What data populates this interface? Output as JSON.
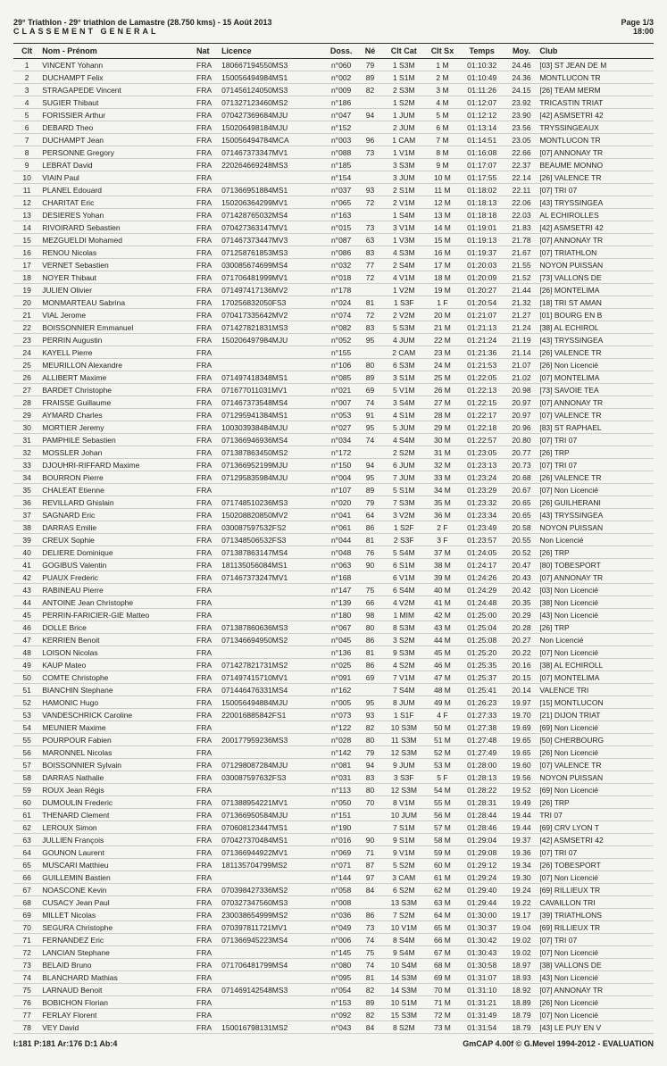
{
  "header": {
    "title": "29° Triathlon - 29° triathlon de Lamastre (28.750 kms) - 15 Août 2013",
    "subtitle": "CLASSEMENT GENERAL",
    "page": "Page 1/3",
    "time": "18:00"
  },
  "columns": [
    "Clt",
    "Nom - Prénom",
    "Nat",
    "Licence",
    "Doss.",
    "Né",
    "Clt Cat",
    "Clt Sx",
    "Temps",
    "Moy.",
    "Club"
  ],
  "rows": [
    [
      "1",
      "VINCENT Yohann",
      "FRA",
      "180667194550MS3",
      "n°060",
      "79",
      "1 S3M",
      "1 M",
      "01:10:32",
      "24.46",
      "[03] ST JEAN DE M"
    ],
    [
      "2",
      "DUCHAMPT Felix",
      "FRA",
      "150056494984MS1",
      "n°002",
      "89",
      "1 S1M",
      "2 M",
      "01:10:49",
      "24.36",
      "MONTLUCON TR"
    ],
    [
      "3",
      "STRAGAPEDE Vincent",
      "FRA",
      "071456124050MS3",
      "n°009",
      "82",
      "2 S3M",
      "3 M",
      "01:11:26",
      "24.15",
      "[26] TEAM MERM"
    ],
    [
      "4",
      "SUGIER Thibaut",
      "FRA",
      "071327123460MS2",
      "n°186",
      "",
      "1 S2M",
      "4 M",
      "01:12:07",
      "23.92",
      "TRICASTIN TRIAT"
    ],
    [
      "5",
      "FORISSIER Arthur",
      "FRA",
      "070427369684MJU",
      "n°047",
      "94",
      "1 JUM",
      "5 M",
      "01:12:12",
      "23.90",
      "[42] ASMSETRI 42"
    ],
    [
      "6",
      "DEBARD Theo",
      "FRA",
      "150206498184MJU",
      "n°152",
      "",
      "2 JUM",
      "6 M",
      "01:13:14",
      "23.56",
      "TRYSSINGEAUX"
    ],
    [
      "7",
      "DUCHAMPT Jean",
      "FRA",
      "150056494784MCA",
      "n°003",
      "96",
      "1 CAM",
      "7 M",
      "01:14:51",
      "23.05",
      "MONTLUCON TR"
    ],
    [
      "8",
      "PERSONNE Gregory",
      "FRA",
      "071467373347MV1",
      "n°088",
      "73",
      "1 V1M",
      "8 M",
      "01:16:08",
      "22.66",
      "[07] ANNONAY TR"
    ],
    [
      "9",
      "LEBRAT David",
      "FRA",
      "220264669248MS3",
      "n°185",
      "",
      "3 S3M",
      "9 M",
      "01:17:07",
      "22.37",
      "BEAUME MONNO"
    ],
    [
      "10",
      "VIAIN Paul",
      "FRA",
      "",
      "n°154",
      "",
      "3 JUM",
      "10 M",
      "01:17:55",
      "22.14",
      "[26] VALENCE TR"
    ],
    [
      "11",
      "PLANEL Edouard",
      "FRA",
      "071366951884MS1",
      "n°037",
      "93",
      "2 S1M",
      "11 M",
      "01:18:02",
      "22.11",
      "[07] TRI 07"
    ],
    [
      "12",
      "CHARITAT Eric",
      "FRA",
      "150206364299MV1",
      "n°065",
      "72",
      "2 V1M",
      "12 M",
      "01:18:13",
      "22.06",
      "[43] TRYSSINGEA"
    ],
    [
      "13",
      "DESIERES Yohan",
      "FRA",
      "071428765032MS4",
      "n°163",
      "",
      "1 S4M",
      "13 M",
      "01:18:18",
      "22.03",
      "AL ECHIROLLES"
    ],
    [
      "14",
      "RIVOIRARD Sebastien",
      "FRA",
      "070427363147MV1",
      "n°015",
      "73",
      "3 V1M",
      "14 M",
      "01:19:01",
      "21.83",
      "[42] ASMSETRI 42"
    ],
    [
      "15",
      "MEZGUELDI Mohamed",
      "FRA",
      "071467373447MV3",
      "n°087",
      "63",
      "1 V3M",
      "15 M",
      "01:19:13",
      "21.78",
      "[07] ANNONAY TR"
    ],
    [
      "16",
      "RENOU Nicolas",
      "FRA",
      "071258761853MS3",
      "n°086",
      "83",
      "4 S3M",
      "16 M",
      "01:19:37",
      "21.67",
      "[07] TRIATHLON"
    ],
    [
      "17",
      "VERNET Sebastien",
      "FRA",
      "030085674699MS4",
      "n°032",
      "77",
      "2 S4M",
      "17 M",
      "01:20:03",
      "21.55",
      "NOYON PUISSAN"
    ],
    [
      "18",
      "NOYER Thibaut",
      "FRA",
      "071706481999MV1",
      "n°018",
      "72",
      "4 V1M",
      "18 M",
      "01:20:09",
      "21.52",
      "[73] VALLONS DE"
    ],
    [
      "19",
      "JULIEN Olivier",
      "FRA",
      "071497417136MV2",
      "n°178",
      "",
      "1 V2M",
      "19 M",
      "01:20:27",
      "21.44",
      "[26] MONTELIMA"
    ],
    [
      "20",
      "MONMARTEAU Sabrina",
      "FRA",
      "170256832050FS3",
      "n°024",
      "81",
      "1 S3F",
      "1 F",
      "01:20:54",
      "21.32",
      "[18] TRI ST AMAN"
    ],
    [
      "21",
      "VIAL Jerome",
      "FRA",
      "070417335642MV2",
      "n°074",
      "72",
      "2 V2M",
      "20 M",
      "01:21:07",
      "21.27",
      "[01] BOURG EN B"
    ],
    [
      "22",
      "BOISSONNIER Emmanuel",
      "FRA",
      "071427821831MS3",
      "n°082",
      "83",
      "5 S3M",
      "21 M",
      "01:21:13",
      "21.24",
      "[38] AL ECHIROL"
    ],
    [
      "23",
      "PERRIN Augustin",
      "FRA",
      "150206497984MJU",
      "n°052",
      "95",
      "4 JUM",
      "22 M",
      "01:21:24",
      "21.19",
      "[43] TRYSSINGEA"
    ],
    [
      "24",
      "KAYELL Pierre",
      "FRA",
      "",
      "n°155",
      "",
      "2 CAM",
      "23 M",
      "01:21:36",
      "21.14",
      "[26] VALENCE TR"
    ],
    [
      "25",
      "MEURILLON Alexandre",
      "FRA",
      "",
      "n°106",
      "80",
      "6 S3M",
      "24 M",
      "01:21:53",
      "21.07",
      "[26] Non Licencié"
    ],
    [
      "26",
      "ALLIBERT Maxime",
      "FRA",
      "071497418348MS1",
      "n°085",
      "89",
      "3 S1M",
      "25 M",
      "01:22:05",
      "21.02",
      "[07] MONTELIMA"
    ],
    [
      "27",
      "BARDET Christophe",
      "FRA",
      "071677011031MV1",
      "n°021",
      "69",
      "5 V1M",
      "26 M",
      "01:22:13",
      "20.98",
      "[73] SAVOIE TEA"
    ],
    [
      "28",
      "FRAISSE Guillaume",
      "FRA",
      "071467373548MS4",
      "n°007",
      "74",
      "3 S4M",
      "27 M",
      "01:22:15",
      "20.97",
      "[07] ANNONAY TR"
    ],
    [
      "29",
      "AYMARD Charles",
      "FRA",
      "071295941384MS1",
      "n°053",
      "91",
      "4 S1M",
      "28 M",
      "01:22:17",
      "20.97",
      "[07] VALENCE TR"
    ],
    [
      "30",
      "MORTIER Jeremy",
      "FRA",
      "100303938484MJU",
      "n°027",
      "95",
      "5 JUM",
      "29 M",
      "01:22:18",
      "20.96",
      "[83] ST RAPHAEL"
    ],
    [
      "31",
      "PAMPHILE Sebastien",
      "FRA",
      "071366946936MS4",
      "n°034",
      "74",
      "4 S4M",
      "30 M",
      "01:22:57",
      "20.80",
      "[07] TRI 07"
    ],
    [
      "32",
      "MOSSLER Johan",
      "FRA",
      "071387863450MS2",
      "n°172",
      "",
      "2 S2M",
      "31 M",
      "01:23:05",
      "20.77",
      "[26] TRP"
    ],
    [
      "33",
      "DJOUHRI-RIFFARD Maxime",
      "FRA",
      "071366952199MJU",
      "n°150",
      "94",
      "6 JUM",
      "32 M",
      "01:23:13",
      "20.73",
      "[07] TRI 07"
    ],
    [
      "34",
      "BOURRON Pierre",
      "FRA",
      "071295835984MJU",
      "n°004",
      "95",
      "7 JUM",
      "33 M",
      "01:23:24",
      "20.68",
      "[26] VALENCE TR"
    ],
    [
      "35",
      "CHALEAT Etienne",
      "FRA",
      "",
      "n°107",
      "89",
      "5 S1M",
      "34 M",
      "01:23:29",
      "20.67",
      "[07] Non Licencié"
    ],
    [
      "36",
      "REVILLARD Ghislain",
      "FRA",
      "071748510236MS3",
      "n°020",
      "79",
      "7 S3M",
      "35 M",
      "01:23:32",
      "20.65",
      "[26] GUILHERANI"
    ],
    [
      "37",
      "SAGNARD Eric",
      "FRA",
      "150208820850MV2",
      "n°041",
      "64",
      "3 V2M",
      "36 M",
      "01:23:34",
      "20.65",
      "[43] TRYSSINGEA"
    ],
    [
      "38",
      "DARRAS Emilie",
      "FRA",
      "030087597532FS2",
      "n°061",
      "86",
      "1 S2F",
      "2 F",
      "01:23:49",
      "20.58",
      "NOYON PUISSAN"
    ],
    [
      "39",
      "CREUX Sophie",
      "FRA",
      "071348506532FS3",
      "n°044",
      "81",
      "2 S3F",
      "3 F",
      "01:23:57",
      "20.55",
      "Non Licencié"
    ],
    [
      "40",
      "DELIERE Dominique",
      "FRA",
      "071387863147MS4",
      "n°048",
      "76",
      "5 S4M",
      "37 M",
      "01:24:05",
      "20.52",
      "[26] TRP"
    ],
    [
      "41",
      "GOGIBUS Valentin",
      "FRA",
      "181135056084MS1",
      "n°063",
      "90",
      "6 S1M",
      "38 M",
      "01:24:17",
      "20.47",
      "[80] TOBESPORT"
    ],
    [
      "42",
      "PUAUX Frederic",
      "FRA",
      "071467373247MV1",
      "n°168",
      "",
      "6 V1M",
      "39 M",
      "01:24:26",
      "20.43",
      "[07] ANNONAY TR"
    ],
    [
      "43",
      "RABINEAU Pierre",
      "FRA",
      "",
      "n°147",
      "75",
      "6 S4M",
      "40 M",
      "01:24:29",
      "20.42",
      "[03] Non Licencié"
    ],
    [
      "44",
      "ANTOINE Jean Christophe",
      "FRA",
      "",
      "n°139",
      "66",
      "4 V2M",
      "41 M",
      "01:24:48",
      "20.35",
      "[38] Non Licencié"
    ],
    [
      "45",
      "PERRIN-FARICIER-GIE Matteo",
      "FRA",
      "",
      "n°180",
      "98",
      "1 MIM",
      "42 M",
      "01:25:00",
      "20.29",
      "[43] Non Licencié"
    ],
    [
      "46",
      "DOLLE Brice",
      "FRA",
      "071387860636MS3",
      "n°067",
      "80",
      "8 S3M",
      "43 M",
      "01:25:04",
      "20.28",
      "[26] TRP"
    ],
    [
      "47",
      "KERRIEN Benoit",
      "FRA",
      "071346694950MS2",
      "n°045",
      "86",
      "3 S2M",
      "44 M",
      "01:25:08",
      "20.27",
      "Non Licencié"
    ],
    [
      "48",
      "LOISON Nicolas",
      "FRA",
      "",
      "n°136",
      "81",
      "9 S3M",
      "45 M",
      "01:25:20",
      "20.22",
      "[07] Non Licencié"
    ],
    [
      "49",
      "KAUP Mateo",
      "FRA",
      "071427821731MS2",
      "n°025",
      "86",
      "4 S2M",
      "46 M",
      "01:25:35",
      "20.16",
      "[38] AL ECHIROLL"
    ],
    [
      "50",
      "COMTE Christophe",
      "FRA",
      "071497415710MV1",
      "n°091",
      "69",
      "7 V1M",
      "47 M",
      "01:25:37",
      "20.15",
      "[07] MONTELIMA"
    ],
    [
      "51",
      "BIANCHIN Stephane",
      "FRA",
      "071446476331MS4",
      "n°162",
      "",
      "7 S4M",
      "48 M",
      "01:25:41",
      "20.14",
      "VALENCE TRI"
    ],
    [
      "52",
      "HAMONIC Hugo",
      "FRA",
      "150056494884MJU",
      "n°005",
      "95",
      "8 JUM",
      "49 M",
      "01:26:23",
      "19.97",
      "[15] MONTLUCON"
    ],
    [
      "53",
      "VANDESCHRICK Caroline",
      "FRA",
      "220016885842FS1",
      "n°073",
      "93",
      "1 S1F",
      "4 F",
      "01:27:33",
      "19.70",
      "[21] DIJON TRIAT"
    ],
    [
      "54",
      "MEUNIER Maxime",
      "FRA",
      "",
      "n°122",
      "82",
      "10 S3M",
      "50 M",
      "01:27:38",
      "19.69",
      "[69] Non Licencié"
    ],
    [
      "55",
      "POURPOUR Fabien",
      "FRA",
      "200177959236MS3",
      "n°028",
      "80",
      "11 S3M",
      "51 M",
      "01:27:48",
      "19.65",
      "[50] CHERBOURG"
    ],
    [
      "56",
      "MARONNEL Nicolas",
      "FRA",
      "",
      "n°142",
      "79",
      "12 S3M",
      "52 M",
      "01:27:49",
      "19.65",
      "[26] Non Licencié"
    ],
    [
      "57",
      "BOISSONNIER Sylvain",
      "FRA",
      "071298087284MJU",
      "n°081",
      "94",
      "9 JUM",
      "53 M",
      "01:28:00",
      "19.60",
      "[07] VALENCE TR"
    ],
    [
      "58",
      "DARRAS Nathalie",
      "FRA",
      "030087597632FS3",
      "n°031",
      "83",
      "3 S3F",
      "5 F",
      "01:28:13",
      "19.56",
      "NOYON PUISSAN"
    ],
    [
      "59",
      "ROUX Jean Régis",
      "FRA",
      "",
      "n°113",
      "80",
      "12 S3M",
      "54 M",
      "01:28:22",
      "19.52",
      "[69] Non Licencié"
    ],
    [
      "60",
      "DUMOULIN Frederic",
      "FRA",
      "071388954221MV1",
      "n°050",
      "70",
      "8 V1M",
      "55 M",
      "01:28:31",
      "19.49",
      "[26] TRP"
    ],
    [
      "61",
      "THENARD Clement",
      "FRA",
      "071366950584MJU",
      "n°151",
      "",
      "10 JUM",
      "56 M",
      "01:28:44",
      "19.44",
      "TRI 07"
    ],
    [
      "62",
      "LEROUX Simon",
      "FRA",
      "070608123447MS1",
      "n°190",
      "",
      "7 S1M",
      "57 M",
      "01:28:46",
      "19.44",
      "[69] CRV LYON T"
    ],
    [
      "63",
      "JULLIEN François",
      "FRA",
      "070427370484MS1",
      "n°016",
      "90",
      "9 S1M",
      "58 M",
      "01:29:04",
      "19.37",
      "[42] ASMSETRI 42"
    ],
    [
      "64",
      "GOUNON Laurent",
      "FRA",
      "071366944922MV1",
      "n°069",
      "71",
      "9 V1M",
      "59 M",
      "01:29:08",
      "19.36",
      "[07] TRI 07"
    ],
    [
      "65",
      "MUSCARI Matthieu",
      "FRA",
      "181135704799MS2",
      "n°071",
      "87",
      "5 S2M",
      "60 M",
      "01:29:12",
      "19.34",
      "[26] TOBESPORT"
    ],
    [
      "66",
      "GUILLEMIN Bastien",
      "FRA",
      "",
      "n°144",
      "97",
      "3 CAM",
      "61 M",
      "01:29:24",
      "19.30",
      "[07] Non Licencié"
    ],
    [
      "67",
      "NOASCONE Kevin",
      "FRA",
      "070398427336MS2",
      "n°058",
      "84",
      "6 S2M",
      "62 M",
      "01:29:40",
      "19.24",
      "[69] RILLIEUX TR"
    ],
    [
      "68",
      "CUSACY Jean Paul",
      "FRA",
      "070327347560MS3",
      "n°008",
      "",
      "13 S3M",
      "63 M",
      "01:29:44",
      "19.22",
      "CAVAILLON TRI"
    ],
    [
      "69",
      "MILLET Nicolas",
      "FRA",
      "230038654999MS2",
      "n°036",
      "86",
      "7 S2M",
      "64 M",
      "01:30:00",
      "19.17",
      "[39] TRIATHLONS"
    ],
    [
      "70",
      "SEGURA Christophe",
      "FRA",
      "070397811721MV1",
      "n°049",
      "73",
      "10 V1M",
      "65 M",
      "01:30:37",
      "19.04",
      "[69] RILLIEUX TR"
    ],
    [
      "71",
      "FERNANDEZ Eric",
      "FRA",
      "071366945223MS4",
      "n°006",
      "74",
      "8 S4M",
      "66 M",
      "01:30:42",
      "19.02",
      "[07] TRI 07"
    ],
    [
      "72",
      "LANCIAN Stephane",
      "FRA",
      "",
      "n°145",
      "75",
      "9 S4M",
      "67 M",
      "01:30:43",
      "19.02",
      "[07] Non Licencié"
    ],
    [
      "73",
      "BELAID Bruno",
      "FRA",
      "071706481799MS4",
      "n°080",
      "74",
      "10 S4M",
      "68 M",
      "01:30:58",
      "18.97",
      "[38] VALLONS DE"
    ],
    [
      "74",
      "BLANCHARD Mathias",
      "FRA",
      "",
      "n°095",
      "81",
      "14 S3M",
      "69 M",
      "01:31:07",
      "18.93",
      "[43] Non Licencié"
    ],
    [
      "75",
      "LARNAUD Benoit",
      "FRA",
      "071469142548MS3",
      "n°054",
      "82",
      "14 S3M",
      "70 M",
      "01:31:10",
      "18.92",
      "[07] ANNONAY TR"
    ],
    [
      "76",
      "BOBICHON Florian",
      "FRA",
      "",
      "n°153",
      "89",
      "10 S1M",
      "71 M",
      "01:31:21",
      "18.89",
      "[26] Non Licencié"
    ],
    [
      "77",
      "FERLAY Florent",
      "FRA",
      "",
      "n°092",
      "82",
      "15 S3M",
      "72 M",
      "01:31:49",
      "18.79",
      "[07] Non Licencié"
    ],
    [
      "78",
      "VEY David",
      "FRA",
      "150016798131MS2",
      "n°043",
      "84",
      "8 S2M",
      "73 M",
      "01:31:54",
      "18.79",
      "[43] LE PUY EN V"
    ]
  ],
  "footer": {
    "left": "I:181 P:181 Ar:176 D:1 Ab:4",
    "right": "GmCAP 4.00f © G.Mevel 1994-2012 - EVALUATION"
  }
}
